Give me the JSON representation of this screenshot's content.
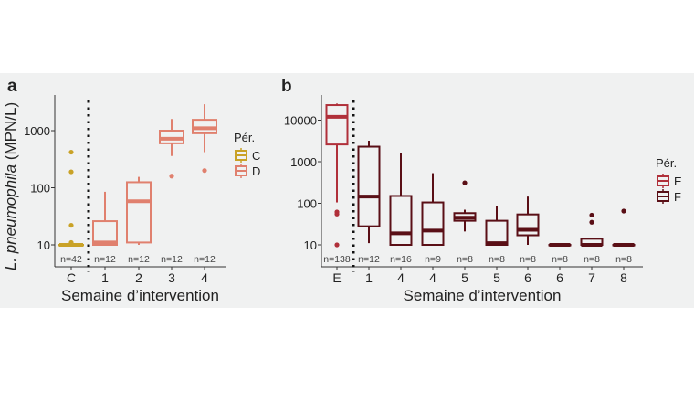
{
  "chart_data": [
    {
      "type": "box",
      "panel_label": "a",
      "ylabel_italic": "L. pneumophila",
      "ylabel_rest": " (MPN/L)",
      "xlabel": "Semaine d’intervention",
      "yscale": "log",
      "ylim": [
        4.2,
        4000
      ],
      "yticks": [
        10,
        100,
        1000
      ],
      "ytick_labels": [
        "10",
        "100",
        "1000"
      ],
      "grid": false,
      "divider_after_index": 0,
      "legend": {
        "title": "Pér.",
        "position": "right",
        "entries": [
          {
            "label": "C",
            "color": "#c9a227"
          },
          {
            "label": "D",
            "color": "#e0806e"
          }
        ]
      },
      "categories": [
        "C",
        "1",
        "2",
        "3",
        "4"
      ],
      "counts": [
        "n=42",
        "n=12",
        "n=12",
        "n=12",
        "n=12"
      ],
      "groups": [
        "C",
        "D",
        "D",
        "D",
        "D"
      ],
      "boxes": [
        {
          "low": 10,
          "q1": 10,
          "median": 10,
          "q3": 10,
          "high": 10,
          "outliers": [
            11,
            22,
            190,
            420
          ]
        },
        {
          "low": 10,
          "q1": 10,
          "median": 11,
          "q3": 26,
          "high": 85,
          "outliers": []
        },
        {
          "low": 10,
          "q1": 11,
          "median": 58,
          "q3": 125,
          "high": 155,
          "outliers": []
        },
        {
          "low": 360,
          "q1": 600,
          "median": 720,
          "q3": 1000,
          "high": 1600,
          "outliers": [
            160
          ]
        },
        {
          "low": 420,
          "q1": 900,
          "median": 1100,
          "q3": 1550,
          "high": 2900,
          "outliers": [
            200
          ]
        }
      ]
    },
    {
      "type": "box",
      "panel_label": "b",
      "xlabel": "Semaine d’intervention",
      "yscale": "log",
      "ylim": [
        3,
        40000
      ],
      "yticks": [
        10,
        100,
        1000,
        10000
      ],
      "ytick_labels": [
        "10",
        "100",
        "1000",
        "10000"
      ],
      "grid": false,
      "divider_after_index": 0,
      "legend": {
        "title": "Pér.",
        "position": "right",
        "entries": [
          {
            "label": "E",
            "color": "#b0303a"
          },
          {
            "label": "F",
            "color": "#5a0f16"
          }
        ]
      },
      "categories": [
        "E",
        "1",
        "4",
        "4",
        "5",
        "5",
        "6",
        "6",
        "7",
        "8"
      ],
      "counts": [
        "n=138",
        "n=12",
        "n=16",
        "n=9",
        "n=8",
        "n=8",
        "n=8",
        "n=8",
        "n=8",
        "n=8"
      ],
      "groups": [
        "E",
        "F",
        "F",
        "F",
        "F",
        "F",
        "F",
        "F",
        "F",
        "F"
      ],
      "boxes": [
        {
          "low": 105,
          "q1": 2600,
          "median": 12000,
          "q3": 23000,
          "high": 25000,
          "outliers": [
            10,
            55,
            62
          ]
        },
        {
          "low": 11,
          "q1": 28,
          "median": 145,
          "q3": 2300,
          "high": 3200,
          "outliers": []
        },
        {
          "low": 10,
          "q1": 10,
          "median": 19,
          "q3": 150,
          "high": 1600,
          "outliers": []
        },
        {
          "low": 10,
          "q1": 10,
          "median": 22,
          "q3": 105,
          "high": 530,
          "outliers": []
        },
        {
          "low": 21,
          "q1": 38,
          "median": 45,
          "q3": 58,
          "high": 70,
          "outliers": [
            310
          ]
        },
        {
          "low": 10,
          "q1": 10,
          "median": 11,
          "q3": 38,
          "high": 85,
          "outliers": []
        },
        {
          "low": 10,
          "q1": 17,
          "median": 23,
          "q3": 54,
          "high": 145,
          "outliers": []
        },
        {
          "low": 10,
          "q1": 10,
          "median": 10,
          "q3": 10,
          "high": 10,
          "outliers": []
        },
        {
          "low": 10,
          "q1": 10,
          "median": 10,
          "q3": 14,
          "high": 14,
          "outliers": [
            35,
            52
          ]
        },
        {
          "low": 10,
          "q1": 10,
          "median": 10,
          "q3": 10,
          "high": 10,
          "outliers": [
            65
          ]
        }
      ]
    }
  ]
}
